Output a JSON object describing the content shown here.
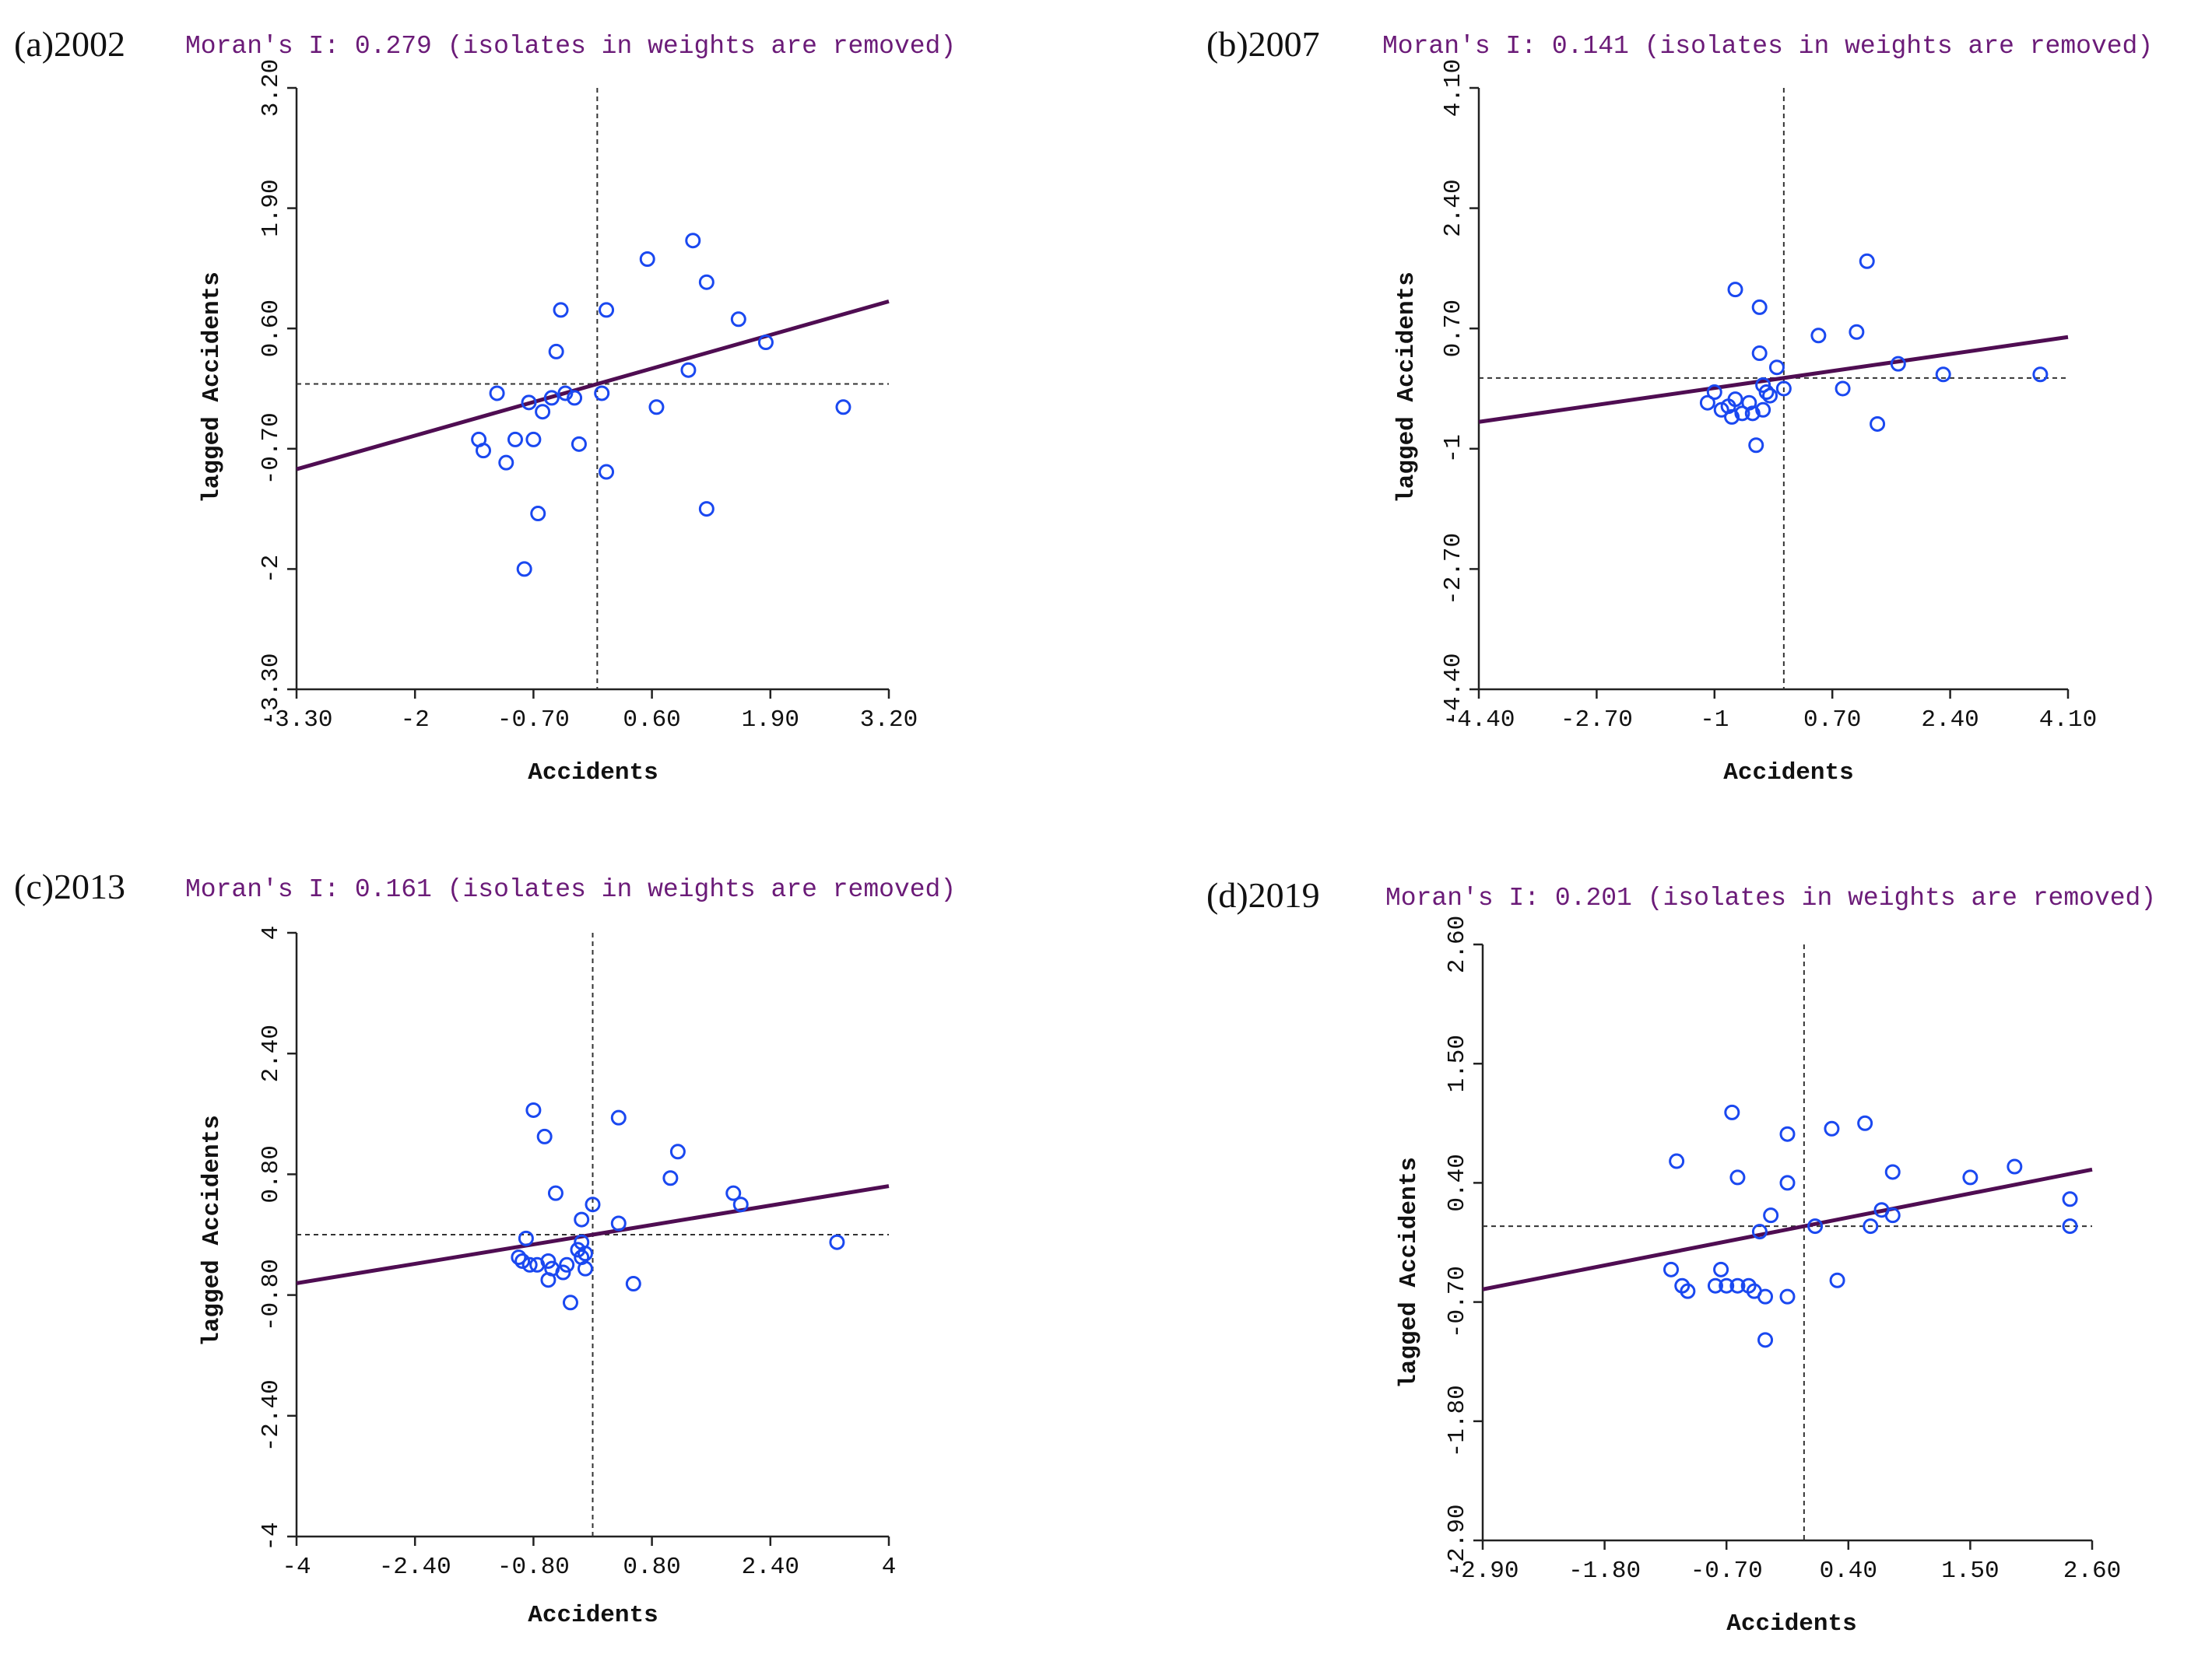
{
  "colors": {
    "point": "#1a48f0",
    "regression": "#4f0d52",
    "title": "#6b1b78",
    "axis": "#222222",
    "reference": "#333333"
  },
  "chart_data": [
    {
      "type": "scatter",
      "panel": "(a)2002",
      "title": "Moran's I: 0.279 (isolates in weights are removed)",
      "xlabel": "Accidents",
      "ylabel": "lagged Accidents",
      "xlim": [
        -3.3,
        3.2
      ],
      "ylim": [
        -3.3,
        3.2
      ],
      "xticks": [
        "-3.30",
        "-2",
        "-0.70",
        "0.60",
        "1.90",
        "3.20"
      ],
      "yticks": [
        "-3.30",
        "-2",
        "-0.70",
        "0.60",
        "1.90",
        "3.20"
      ],
      "slope": 0.279,
      "points": [
        [
          -1.3,
          -0.6
        ],
        [
          -1.25,
          -0.72
        ],
        [
          -1.1,
          -0.1
        ],
        [
          -1.0,
          -0.85
        ],
        [
          -0.9,
          -0.6
        ],
        [
          -0.8,
          -2.0
        ],
        [
          -0.75,
          -0.2
        ],
        [
          -0.7,
          -0.6
        ],
        [
          -0.65,
          -1.4
        ],
        [
          -0.6,
          -0.3
        ],
        [
          -0.5,
          -0.15
        ],
        [
          -0.45,
          0.35
        ],
        [
          -0.4,
          0.8
        ],
        [
          -0.35,
          -0.1
        ],
        [
          -0.25,
          -0.15
        ],
        [
          -0.2,
          -0.65
        ],
        [
          0.05,
          -0.1
        ],
        [
          0.1,
          -0.95
        ],
        [
          0.1,
          0.8
        ],
        [
          0.55,
          1.35
        ],
        [
          0.65,
          -0.25
        ],
        [
          1.0,
          0.15
        ],
        [
          1.05,
          1.55
        ],
        [
          1.2,
          1.1
        ],
        [
          1.2,
          -1.35
        ],
        [
          1.55,
          0.7
        ],
        [
          1.85,
          0.45
        ],
        [
          2.7,
          -0.25
        ]
      ]
    },
    {
      "type": "scatter",
      "panel": "(b)2007",
      "title": "Moran's I: 0.141 (isolates in weights are removed)",
      "xlabel": "Accidents",
      "ylabel": "lagged Accidents",
      "xlim": [
        -4.4,
        4.1
      ],
      "ylim": [
        -4.4,
        4.1
      ],
      "xticks": [
        "-4.40",
        "-2.70",
        "-1",
        "0.70",
        "2.40",
        "4.10"
      ],
      "yticks": [
        "-4.40",
        "-2.70",
        "-1",
        "0.70",
        "2.40",
        "4.10"
      ],
      "slope": 0.141,
      "points": [
        [
          -1.1,
          -0.35
        ],
        [
          -1.0,
          -0.2
        ],
        [
          -0.9,
          -0.45
        ],
        [
          -0.8,
          -0.4
        ],
        [
          -0.75,
          -0.55
        ],
        [
          -0.7,
          1.25
        ],
        [
          -0.7,
          -0.3
        ],
        [
          -0.6,
          -0.5
        ],
        [
          -0.5,
          -0.35
        ],
        [
          -0.45,
          -0.5
        ],
        [
          -0.4,
          -0.95
        ],
        [
          -0.35,
          1.0
        ],
        [
          -0.35,
          0.35
        ],
        [
          -0.3,
          -0.45
        ],
        [
          -0.3,
          -0.1
        ],
        [
          -0.25,
          -0.2
        ],
        [
          -0.2,
          -0.25
        ],
        [
          -0.1,
          0.15
        ],
        [
          0.0,
          -0.15
        ],
        [
          0.5,
          0.6
        ],
        [
          0.85,
          -0.15
        ],
        [
          1.05,
          0.65
        ],
        [
          1.2,
          1.65
        ],
        [
          1.35,
          -0.65
        ],
        [
          1.65,
          0.2
        ],
        [
          2.3,
          0.05
        ],
        [
          3.7,
          0.05
        ]
      ]
    },
    {
      "type": "scatter",
      "panel": "(c)2013",
      "title": "Moran's I: 0.161 (isolates in weights are removed)",
      "xlabel": "Accidents",
      "ylabel": "lagged Accidents",
      "xlim": [
        -4,
        4
      ],
      "ylim": [
        -4,
        4
      ],
      "xticks": [
        "-4",
        "-2.40",
        "-0.80",
        "0.80",
        "2.40",
        "4"
      ],
      "yticks": [
        "-4",
        "-2.40",
        "-0.80",
        "0.80",
        "2.40",
        "4"
      ],
      "slope": 0.161,
      "points": [
        [
          -1.0,
          -0.3
        ],
        [
          -0.95,
          -0.35
        ],
        [
          -0.9,
          -0.05
        ],
        [
          -0.85,
          -0.4
        ],
        [
          -0.8,
          1.65
        ],
        [
          -0.75,
          -0.4
        ],
        [
          -0.65,
          1.3
        ],
        [
          -0.6,
          -0.35
        ],
        [
          -0.6,
          -0.6
        ],
        [
          -0.55,
          -0.45
        ],
        [
          -0.5,
          0.55
        ],
        [
          -0.4,
          -0.5
        ],
        [
          -0.35,
          -0.4
        ],
        [
          -0.3,
          -0.9
        ],
        [
          -0.2,
          -0.2
        ],
        [
          -0.15,
          -0.3
        ],
        [
          -0.15,
          -0.1
        ],
        [
          -0.15,
          0.2
        ],
        [
          -0.1,
          -0.45
        ],
        [
          -0.1,
          -0.25
        ],
        [
          0.0,
          0.4
        ],
        [
          0.35,
          0.15
        ],
        [
          0.55,
          -0.65
        ],
        [
          0.35,
          1.55
        ],
        [
          1.05,
          0.75
        ],
        [
          1.15,
          1.1
        ],
        [
          1.9,
          0.55
        ],
        [
          2.0,
          0.4
        ],
        [
          3.3,
          -0.1
        ]
      ]
    },
    {
      "type": "scatter",
      "panel": "(d)2019",
      "title": "Moran's I: 0.201 (isolates in weights are removed)",
      "xlabel": "Accidents",
      "ylabel": "lagged Accidents",
      "xlim": [
        -2.9,
        2.6
      ],
      "ylim": [
        -2.9,
        2.6
      ],
      "xticks": [
        "-2.90",
        "-1.80",
        "-0.70",
        "0.40",
        "1.50",
        "2.60"
      ],
      "yticks": [
        "-2.90",
        "-1.80",
        "-0.70",
        "0.40",
        "1.50",
        "2.60"
      ],
      "slope": 0.201,
      "points": [
        [
          -1.2,
          -0.4
        ],
        [
          -1.1,
          -0.55
        ],
        [
          -1.05,
          -0.6
        ],
        [
          -1.15,
          0.6
        ],
        [
          -0.8,
          -0.55
        ],
        [
          -0.75,
          -0.4
        ],
        [
          -0.7,
          -0.55
        ],
        [
          -0.65,
          1.05
        ],
        [
          -0.6,
          0.45
        ],
        [
          -0.6,
          -0.55
        ],
        [
          -0.5,
          -0.55
        ],
        [
          -0.45,
          -0.6
        ],
        [
          -0.4,
          -0.05
        ],
        [
          -0.35,
          -0.65
        ],
        [
          -0.35,
          -1.05
        ],
        [
          -0.3,
          0.1
        ],
        [
          -0.15,
          0.85
        ],
        [
          -0.15,
          0.4
        ],
        [
          -0.15,
          -0.65
        ],
        [
          0.1,
          0.0
        ],
        [
          0.25,
          0.9
        ],
        [
          0.3,
          -0.5
        ],
        [
          0.55,
          0.95
        ],
        [
          0.6,
          0.0
        ],
        [
          0.7,
          0.15
        ],
        [
          0.8,
          0.5
        ],
        [
          0.8,
          0.1
        ],
        [
          1.5,
          0.45
        ],
        [
          1.9,
          0.55
        ],
        [
          2.4,
          0.25
        ],
        [
          2.4,
          0.0
        ]
      ]
    }
  ]
}
